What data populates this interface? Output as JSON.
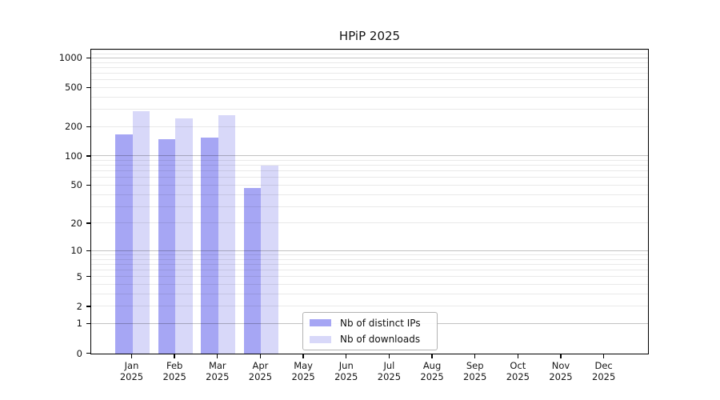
{
  "title": "HPiP 2025",
  "legend": {
    "items": [
      {
        "label": "Nb of distinct IPs",
        "color": "#a6a6f4"
      },
      {
        "label": "Nb of downloads",
        "color": "#d8d8f9"
      }
    ]
  },
  "chart_data": {
    "type": "bar",
    "title": "HPiP 2025",
    "categories": [
      {
        "month": "Jan",
        "year": "2025"
      },
      {
        "month": "Feb",
        "year": "2025"
      },
      {
        "month": "Mar",
        "year": "2025"
      },
      {
        "month": "Apr",
        "year": "2025"
      },
      {
        "month": "May",
        "year": "2025"
      },
      {
        "month": "Jun",
        "year": "2025"
      },
      {
        "month": "Jul",
        "year": "2025"
      },
      {
        "month": "Aug",
        "year": "2025"
      },
      {
        "month": "Sep",
        "year": "2025"
      },
      {
        "month": "Oct",
        "year": "2025"
      },
      {
        "month": "Nov",
        "year": "2025"
      },
      {
        "month": "Dec",
        "year": "2025"
      }
    ],
    "series": [
      {
        "name": "Nb of distinct IPs",
        "color": "#a6a6f4",
        "values": [
          167,
          150,
          156,
          47,
          null,
          null,
          null,
          null,
          null,
          null,
          null,
          null
        ]
      },
      {
        "name": "Nb of downloads",
        "color": "#d8d8f9",
        "values": [
          291,
          243,
          262,
          80,
          null,
          null,
          null,
          null,
          null,
          null,
          null,
          null
        ]
      }
    ],
    "yticks": [
      0,
      1,
      2,
      5,
      10,
      20,
      50,
      100,
      200,
      500,
      1000
    ],
    "y_scale": "log1p",
    "ylim": [
      0,
      1250
    ],
    "xlabel": "",
    "ylabel": "",
    "grid": true,
    "legend_position": "inside lower-center"
  }
}
